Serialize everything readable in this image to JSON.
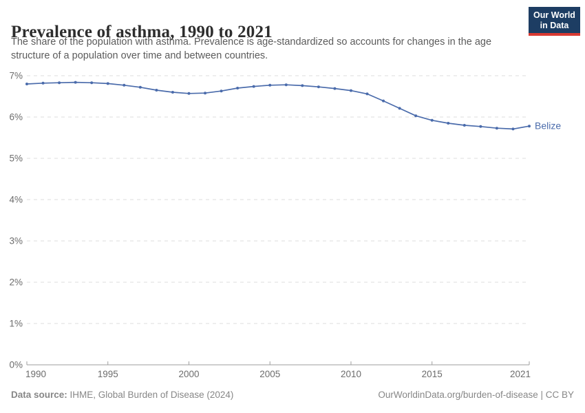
{
  "header": {
    "subtitle_lines": [
      "The share of the population with asthma. Prevalence is age-standardized so accounts for changes in the age",
      "structure of a population over time and between countries."
    ],
    "logo": {
      "line1": "Our World",
      "line2": "in Data",
      "bg_color": "#1d3d63",
      "accent_color": "#d93a32"
    }
  },
  "chart_data": {
    "type": "line",
    "title": "Prevalence of asthma, 1990 to 2021",
    "xlabel": "",
    "ylabel": "",
    "xlim": [
      1990,
      2021
    ],
    "ylim": [
      0,
      7
    ],
    "x_ticks": [
      1990,
      1995,
      2000,
      2005,
      2010,
      2015,
      2021
    ],
    "y_tick_labels": [
      "0%",
      "1%",
      "2%",
      "3%",
      "4%",
      "5%",
      "6%",
      "7%"
    ],
    "grid": "horizontal-dashed",
    "grid_color": "#dcdcdc",
    "axis_color": "#9e9e9e",
    "legend_position": "end-of-line-label",
    "series": [
      {
        "name": "Belize",
        "color": "#4a6bab",
        "x": [
          1990,
          1991,
          1992,
          1993,
          1994,
          1995,
          1996,
          1997,
          1998,
          1999,
          2000,
          2001,
          2002,
          2003,
          2004,
          2005,
          2006,
          2007,
          2008,
          2009,
          2010,
          2011,
          2012,
          2013,
          2014,
          2015,
          2016,
          2017,
          2018,
          2019,
          2020,
          2021
        ],
        "values": [
          6.8,
          6.82,
          6.83,
          6.84,
          6.83,
          6.81,
          6.77,
          6.72,
          6.65,
          6.6,
          6.57,
          6.58,
          6.63,
          6.7,
          6.74,
          6.77,
          6.78,
          6.76,
          6.73,
          6.69,
          6.64,
          6.56,
          6.39,
          6.21,
          6.03,
          5.92,
          5.85,
          5.8,
          5.77,
          5.73,
          5.71,
          5.78
        ]
      }
    ]
  },
  "footer": {
    "source_label": "Data source:",
    "source_text": " IHME, Global Burden of Disease (2024)",
    "link_text": "OurWorldinData.org/burden-of-disease | CC BY"
  }
}
